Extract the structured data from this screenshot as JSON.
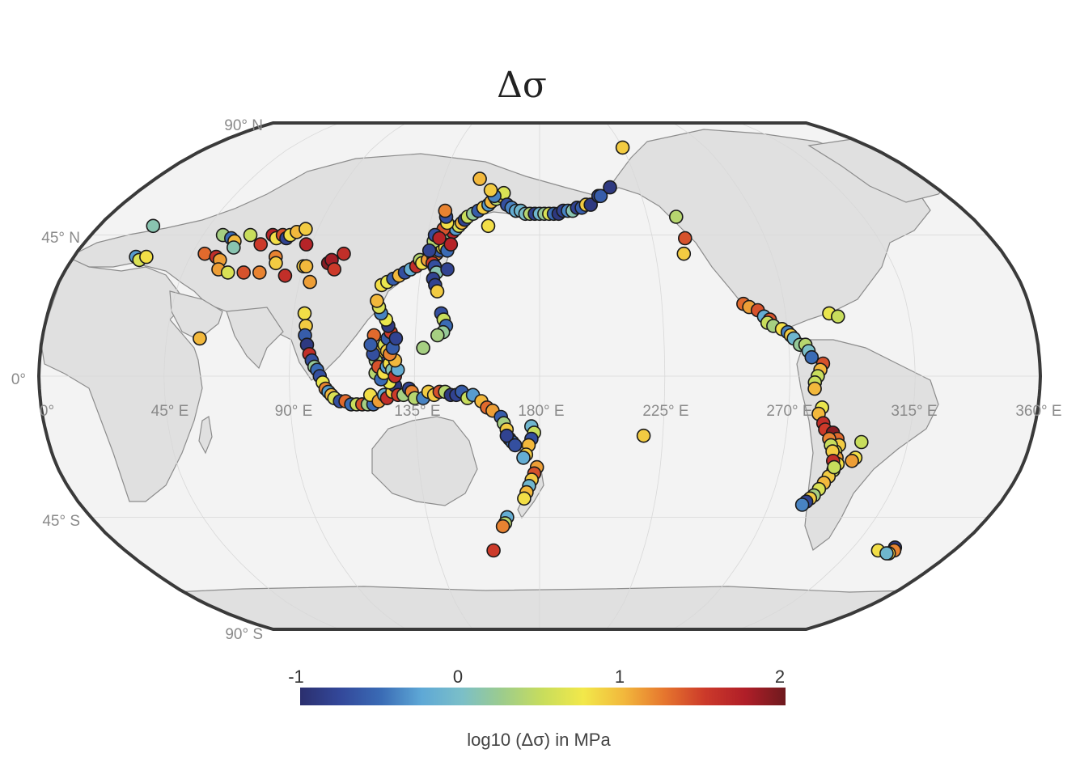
{
  "title": "Δσ",
  "lat_labels": [
    "90° N",
    "45° N",
    "0°",
    "45° S",
    "90° S"
  ],
  "lon_labels": [
    "0°",
    "45° E",
    "90° E",
    "135° E",
    "180° E",
    "225° E",
    "270° E",
    "315° E",
    "360° E"
  ],
  "colorbar": {
    "ticks": [
      "-1",
      "0",
      "1",
      "2"
    ],
    "label": "log10 (Δσ) in MPa",
    "range": [
      -1,
      2
    ],
    "colors": [
      "#2b2f6e",
      "#33489a",
      "#3a6bb5",
      "#5ea8d6",
      "#7bbfc8",
      "#9dcc8c",
      "#c8dd5c",
      "#f2e84a",
      "#f2b83c",
      "#e6762e",
      "#cc3a2a",
      "#b01e28",
      "#6e1a1e"
    ]
  },
  "colors": {
    "frame": "#3a3a3a",
    "ocean": "#f3f3f3",
    "land": "#e0e0e0",
    "marker_edge": "#1a1a1a"
  },
  "chart_data": {
    "type": "scatter",
    "projection": "Robinson",
    "x_axis": "longitude (degrees E)",
    "y_axis": "latitude (degrees)",
    "value": "log10(Δσ) in MPa",
    "points": [
      [
        22,
        48,
        0.1
      ],
      [
        24,
        38,
        -0.3
      ],
      [
        26,
        37,
        0.6
      ],
      [
        28,
        38,
        0.8
      ],
      [
        50,
        39,
        1.3
      ],
      [
        53,
        45,
        0.3
      ],
      [
        55,
        38,
        1.6
      ],
      [
        57,
        37,
        1.1
      ],
      [
        57,
        44,
        -0.5
      ],
      [
        59,
        43,
        1.0
      ],
      [
        60,
        41,
        0.1
      ],
      [
        58,
        34,
        1.1
      ],
      [
        62,
        33,
        0.6
      ],
      [
        64,
        45,
        0.5
      ],
      [
        57,
        12,
        1.0
      ],
      [
        68,
        33,
        1.4
      ],
      [
        70,
        42,
        1.5
      ],
      [
        73,
        45,
        1.7
      ],
      [
        75,
        44,
        0.8
      ],
      [
        77,
        45,
        1.4
      ],
      [
        79,
        44,
        -0.8
      ],
      [
        80,
        45,
        0.8
      ],
      [
        82,
        46,
        1.0
      ],
      [
        85,
        47,
        0.9
      ],
      [
        78,
        38,
        1.2
      ],
      [
        79,
        36,
        0.9
      ],
      [
        74,
        33,
        1.2
      ],
      [
        84,
        32,
        1.6
      ],
      [
        88,
        42,
        1.7
      ],
      [
        90,
        35,
        0.9
      ],
      [
        91,
        35,
        1.0
      ],
      [
        94,
        30,
        1.1
      ],
      [
        99,
        36,
        1.9
      ],
      [
        100,
        37,
        1.8
      ],
      [
        102,
        34,
        1.5
      ],
      [
        104,
        39,
        1.6
      ],
      [
        94,
        20,
        0.8
      ],
      [
        95,
        16,
        0.9
      ],
      [
        95,
        13,
        -0.6
      ],
      [
        96,
        10,
        -0.9
      ],
      [
        97,
        7,
        1.6
      ],
      [
        98,
        5,
        -0.7
      ],
      [
        99,
        3,
        0.2
      ],
      [
        100,
        2,
        -0.5
      ],
      [
        101,
        0,
        -0.7
      ],
      [
        102,
        -2,
        0.7
      ],
      [
        103,
        -4,
        1.2
      ],
      [
        104,
        -5,
        -0.3
      ],
      [
        105,
        -6,
        1.0
      ],
      [
        106,
        -7,
        0.6
      ],
      [
        108,
        -8,
        -0.7
      ],
      [
        110,
        -8,
        1.3
      ],
      [
        112,
        -9,
        -0.5
      ],
      [
        114,
        -9,
        0.5
      ],
      [
        116,
        -9,
        1.4
      ],
      [
        118,
        -9,
        0.3
      ],
      [
        120,
        -9,
        -0.5
      ],
      [
        119,
        -6,
        0.8
      ],
      [
        122,
        -8,
        1.1
      ],
      [
        124,
        -6,
        -0.2
      ],
      [
        125,
        -7,
        1.6
      ],
      [
        127,
        -5,
        0.9
      ],
      [
        128,
        -3,
        -0.9
      ],
      [
        126,
        -2,
        0.7
      ],
      [
        129,
        -6,
        1.5
      ],
      [
        131,
        -6,
        0.3
      ],
      [
        133,
        -4,
        -0.8
      ],
      [
        134,
        -5,
        1.2
      ],
      [
        135,
        -7,
        0.4
      ],
      [
        138,
        -7,
        -0.4
      ],
      [
        140,
        -5,
        0.9
      ],
      [
        142,
        -6,
        0.9
      ],
      [
        144,
        -5,
        1.4
      ],
      [
        146,
        -5,
        0.4
      ],
      [
        148,
        -6,
        -0.9
      ],
      [
        150,
        -6,
        -0.8
      ],
      [
        152,
        -5,
        -0.6
      ],
      [
        154,
        -7,
        0.5
      ],
      [
        156,
        -6,
        -0.3
      ],
      [
        159,
        -8,
        1.0
      ],
      [
        161,
        -10,
        1.3
      ],
      [
        163,
        -11,
        1.1
      ],
      [
        166,
        -13,
        -0.6
      ],
      [
        167,
        -15,
        0.3
      ],
      [
        168,
        -17,
        0.9
      ],
      [
        169,
        -20,
        0.6
      ],
      [
        170,
        -21,
        -0.5
      ],
      [
        168,
        -19,
        -0.8
      ],
      [
        171,
        -22,
        -0.7
      ],
      [
        177,
        -16,
        -0.1
      ],
      [
        178,
        -18,
        0.5
      ],
      [
        177,
        -20,
        -0.7
      ],
      [
        176,
        -22,
        1.0
      ],
      [
        175,
        -25,
        0.9
      ],
      [
        174,
        -26,
        -0.2
      ],
      [
        179,
        -29,
        1.1
      ],
      [
        178,
        -31,
        1.4
      ],
      [
        177,
        -33,
        0.9
      ],
      [
        176,
        -35,
        -0.1
      ],
      [
        175,
        -37,
        1.0
      ],
      [
        174,
        -39,
        0.8
      ],
      [
        167,
        -45,
        -0.2
      ],
      [
        166,
        -47,
        0.4
      ],
      [
        165,
        -48,
        1.2
      ],
      [
        160,
        -56,
        1.5
      ],
      [
        122,
        6,
        -0.8
      ],
      [
        123,
        8,
        0.9
      ],
      [
        124,
        10,
        0.6
      ],
      [
        125,
        12,
        -0.6
      ],
      [
        126,
        14,
        1.5
      ],
      [
        125,
        16,
        -0.9
      ],
      [
        124,
        18,
        0.7
      ],
      [
        122,
        20,
        -0.4
      ],
      [
        121,
        22,
        0.6
      ],
      [
        120,
        24,
        1.0
      ],
      [
        121,
        5,
        0.3
      ],
      [
        120,
        7,
        -0.7
      ],
      [
        121,
        1,
        0.4
      ],
      [
        122,
        3,
        1.4
      ],
      [
        123,
        -1,
        -0.5
      ],
      [
        124,
        1,
        0.8
      ],
      [
        125,
        3,
        -0.3
      ],
      [
        126,
        4,
        0.8
      ],
      [
        127,
        2,
        0.1
      ],
      [
        128,
        0,
        1.6
      ],
      [
        129,
        2,
        -0.2
      ],
      [
        128,
        5,
        1.0
      ],
      [
        125,
        8,
        0.9
      ],
      [
        126,
        7,
        1.2
      ],
      [
        127,
        9,
        -0.6
      ],
      [
        128,
        12,
        -0.8
      ],
      [
        120,
        13,
        1.3
      ],
      [
        119,
        10,
        -0.6
      ],
      [
        121,
        29,
        0.8
      ],
      [
        123,
        30,
        0.7
      ],
      [
        125,
        31,
        -0.6
      ],
      [
        127,
        32,
        1.0
      ],
      [
        129,
        33,
        -0.7
      ],
      [
        131,
        34,
        -0.2
      ],
      [
        133,
        35,
        1.6
      ],
      [
        134,
        37,
        0.4
      ],
      [
        135,
        36,
        0.8
      ],
      [
        137,
        37,
        1.1
      ],
      [
        139,
        38,
        -0.7
      ],
      [
        140,
        39,
        1.2
      ],
      [
        141,
        40,
        -0.6
      ],
      [
        142,
        41,
        0.8
      ],
      [
        142,
        43,
        -0.5
      ],
      [
        143,
        44,
        0.6
      ],
      [
        144,
        43,
        -0.8
      ],
      [
        143,
        46,
        0.2
      ],
      [
        145,
        46,
        1.7
      ],
      [
        146,
        47,
        -0.3
      ],
      [
        147,
        48,
        0.6
      ],
      [
        148,
        49,
        1.0
      ],
      [
        149,
        50,
        -0.8
      ],
      [
        150,
        51,
        0.5
      ],
      [
        152,
        52,
        0.2
      ],
      [
        154,
        53,
        -0.6
      ],
      [
        156,
        54,
        0.9
      ],
      [
        158,
        55,
        -0.3
      ],
      [
        159,
        56,
        1.0
      ],
      [
        161,
        57,
        0.4
      ],
      [
        163,
        58,
        0.9
      ],
      [
        164,
        59,
        0.6
      ],
      [
        141,
        47,
        1.4
      ],
      [
        142,
        49,
        0.8
      ],
      [
        141,
        51,
        -0.7
      ],
      [
        140,
        53,
        1.2
      ],
      [
        139,
        36,
        1.5
      ],
      [
        140,
        35,
        -0.7
      ],
      [
        141,
        33,
        0.1
      ],
      [
        140,
        31,
        -0.8
      ],
      [
        141,
        29,
        -0.8
      ],
      [
        142,
        27,
        0.9
      ],
      [
        144,
        20,
        -0.7
      ],
      [
        145,
        18,
        0.5
      ],
      [
        146,
        16,
        -0.5
      ],
      [
        145,
        14,
        0.2
      ],
      [
        143,
        13,
        0.3
      ],
      [
        138,
        9,
        0.3
      ],
      [
        145,
        34,
        -0.8
      ],
      [
        138,
        43,
        0.4
      ],
      [
        143,
        41,
        0.8
      ],
      [
        144,
        40,
        -0.5
      ],
      [
        145,
        42,
        1.7
      ],
      [
        137,
        40,
        -0.8
      ],
      [
        138,
        45,
        -0.7
      ],
      [
        140,
        44,
        1.7
      ],
      [
        160,
        58,
        -0.4
      ],
      [
        158,
        60,
        0.9
      ],
      [
        159,
        48,
        0.8
      ],
      [
        152,
        64,
        1.0
      ],
      [
        166,
        55,
        -0.7
      ],
      [
        168,
        54,
        -0.4
      ],
      [
        170,
        53,
        -0.2
      ],
      [
        172,
        53,
        -0.1
      ],
      [
        174,
        52,
        0.0
      ],
      [
        176,
        52,
        0.4
      ],
      [
        178,
        52,
        -0.8
      ],
      [
        180,
        52,
        -0.1
      ],
      [
        182,
        52,
        0.2
      ],
      [
        184,
        52,
        0.6
      ],
      [
        186,
        52,
        -0.5
      ],
      [
        188,
        52,
        -0.9
      ],
      [
        190,
        53,
        -0.8
      ],
      [
        192,
        53,
        -0.4
      ],
      [
        194,
        53,
        0.1
      ],
      [
        196,
        54,
        -0.8
      ],
      [
        198,
        54,
        -0.6
      ],
      [
        200,
        55,
        0.9
      ],
      [
        202,
        55,
        -0.9
      ],
      [
        206,
        58,
        -0.8
      ],
      [
        207,
        58,
        -0.6
      ],
      [
        212,
        61,
        -0.9
      ],
      [
        237,
        51,
        0.4
      ],
      [
        238,
        44,
        1.4
      ],
      [
        236,
        39,
        0.9
      ],
      [
        225,
        76,
        0.9
      ],
      [
        255,
        23,
        1.3
      ],
      [
        257,
        22,
        1.1
      ],
      [
        260,
        21,
        1.4
      ],
      [
        262,
        19,
        -0.2
      ],
      [
        264,
        18,
        1.4
      ],
      [
        263,
        17,
        0.5
      ],
      [
        265,
        16,
        0.3
      ],
      [
        268,
        15,
        0.8
      ],
      [
        270,
        14,
        -0.4
      ],
      [
        271,
        13,
        0.9
      ],
      [
        272,
        12,
        -0.1
      ],
      [
        274,
        10,
        0.2
      ],
      [
        276,
        10,
        0.4
      ],
      [
        277,
        8,
        0.0
      ],
      [
        278,
        6,
        -0.5
      ],
      [
        282,
        4,
        1.4
      ],
      [
        281,
        2,
        1.0
      ],
      [
        280,
        0,
        0.5
      ],
      [
        279,
        -2,
        0.5
      ],
      [
        279,
        -4,
        1.0
      ],
      [
        282,
        -10,
        0.7
      ],
      [
        281,
        -12,
        1.0
      ],
      [
        283,
        -15,
        1.6
      ],
      [
        284,
        -17,
        1.5
      ],
      [
        287,
        -18,
        1.9
      ],
      [
        289,
        -20,
        1.3
      ],
      [
        290,
        -22,
        0.9
      ],
      [
        289,
        -24,
        0.6
      ],
      [
        290,
        -26,
        1.1
      ],
      [
        291,
        -28,
        0.8
      ],
      [
        290,
        -30,
        0.5
      ],
      [
        289,
        -32,
        0.9
      ],
      [
        288,
        -34,
        1.0
      ],
      [
        287,
        -36,
        0.6
      ],
      [
        286,
        -38,
        0.3
      ],
      [
        285,
        -39,
        0.9
      ],
      [
        284,
        -40,
        -0.8
      ],
      [
        283,
        -41,
        -0.4
      ],
      [
        286,
        -20,
        1.2
      ],
      [
        287,
        -22,
        0.5
      ],
      [
        288,
        -24,
        0.9
      ],
      [
        289,
        -27,
        1.6
      ],
      [
        290,
        -29,
        0.5
      ],
      [
        298,
        -21,
        0.5
      ],
      [
        297,
        -26,
        0.8
      ],
      [
        296,
        -27,
        1.1
      ],
      [
        286,
        20,
        0.7
      ],
      [
        289,
        19,
        0.5
      ],
      [
        218,
        -19,
        0.9
      ],
      [
        327,
        -56,
        0.8
      ],
      [
        333,
        -55,
        -0.9
      ],
      [
        334,
        -56,
        1.2
      ],
      [
        333,
        -57,
        0.9
      ],
      [
        332,
        -57,
        -0.1
      ]
    ]
  }
}
